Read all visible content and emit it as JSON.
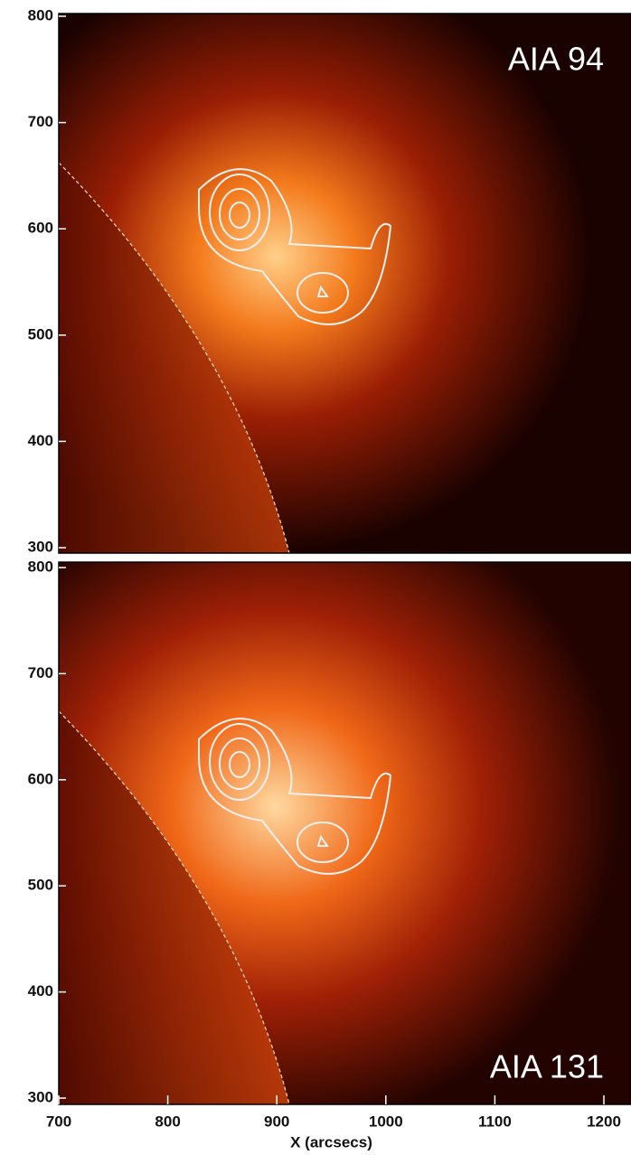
{
  "panels": [
    {
      "label": "AIA 94",
      "ylim": [
        300,
        800
      ],
      "yticks": [
        300,
        400,
        500,
        600,
        700,
        800
      ]
    },
    {
      "label": "AIA 131",
      "ylim": [
        300,
        800
      ],
      "yticks": [
        300,
        400,
        500,
        600,
        700,
        800
      ]
    }
  ],
  "xaxis": {
    "label": "X (arcsecs)",
    "xlim": [
      700,
      1200
    ],
    "xticks": [
      700,
      800,
      900,
      1000,
      1100,
      1200
    ]
  }
}
